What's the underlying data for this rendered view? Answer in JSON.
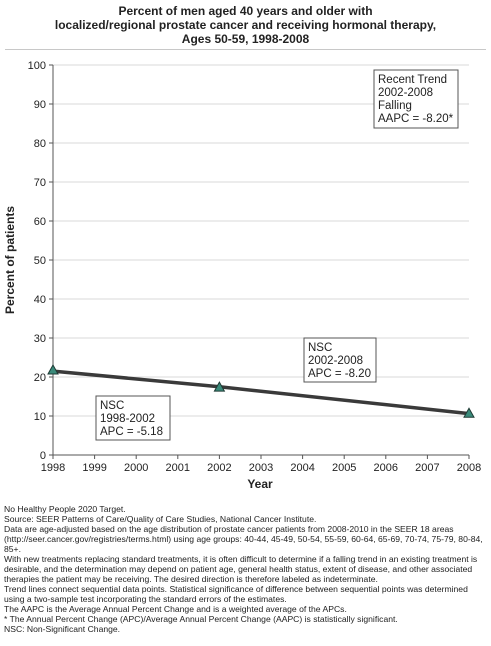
{
  "title_lines": [
    "Percent of men aged 40 years and older with",
    "localized/regional prostate cancer and receiving hormonal therapy,",
    "Ages 50-59,  1998-2008"
  ],
  "chart_data": {
    "type": "line",
    "xlabel": "Year",
    "ylabel": "Percent of patients",
    "xlim": [
      1998,
      2008
    ],
    "ylim": [
      0,
      100
    ],
    "x_ticks": [
      "1998",
      "1999",
      "2000",
      "2001",
      "2002",
      "2003",
      "2004",
      "2005",
      "2006",
      "2007",
      "2008"
    ],
    "y_ticks": [
      "0",
      "10",
      "20",
      "30",
      "40",
      "50",
      "60",
      "70",
      "80",
      "90",
      "100"
    ],
    "grid": true,
    "points": [
      {
        "x": 1998,
        "y": 21.8
      },
      {
        "x": 2002,
        "y": 17.4
      },
      {
        "x": 2008,
        "y": 10.7
      }
    ],
    "trend_segments": [
      {
        "x": [
          1998,
          2002
        ],
        "y": [
          21.5,
          17.5
        ]
      },
      {
        "x": [
          2002,
          2008
        ],
        "y": [
          17.5,
          10.6
        ]
      }
    ],
    "annotations": [
      {
        "id": "recent-trend",
        "lines": [
          "Recent Trend",
          "2002-2008",
          "Falling",
          "AAPC = -8.20*"
        ]
      },
      {
        "id": "nsc-2002-2008",
        "lines": [
          "NSC",
          "2002-2008",
          "APC = -8.20"
        ]
      },
      {
        "id": "nsc-1998-2002",
        "lines": [
          "NSC",
          "1998-2002",
          "APC = -5.18"
        ]
      }
    ],
    "colors": {
      "line": "#3a3a3a",
      "marker": "#3a8a7a",
      "marker_edge": "#1e3a34",
      "grid": "#d9d9d9",
      "axis": "#555555"
    }
  },
  "notes": [
    "No Healthy People 2020 Target.",
    "Source: SEER Patterns of Care/Quality of Care Studies, National Cancer Institute.",
    "Data are age-adjusted based on the age distribution of prostate cancer patients from 2008-2010 in the SEER 18 areas (http://seer.cancer.gov/registries/terms.html) using age groups: 40-44, 45-49, 50-54, 55-59, 60-64, 65-69, 70-74, 75-79, 80-84, 85+.",
    "With new treatments replacing standard treatments, it is often difficult to determine if a falling trend in an existing treatment is desirable, and the determination may depend on patient age, general health status, extent of disease, and other associated therapies the patient may be receiving.  The desired direction is therefore labeled as indeterminate.",
    "Trend lines connect sequential data points. Statistical significance of difference between sequential points was determined using a two-sample test incorporating the standard errors of the estimates.",
    "The AAPC is the Average Annual Percent Change and is a weighted average of the APCs.",
    "* The Annual Percent Change (APC)/Average Annual Percent Change (AAPC) is statistically significant.",
    "NSC: Non-Significant Change."
  ]
}
